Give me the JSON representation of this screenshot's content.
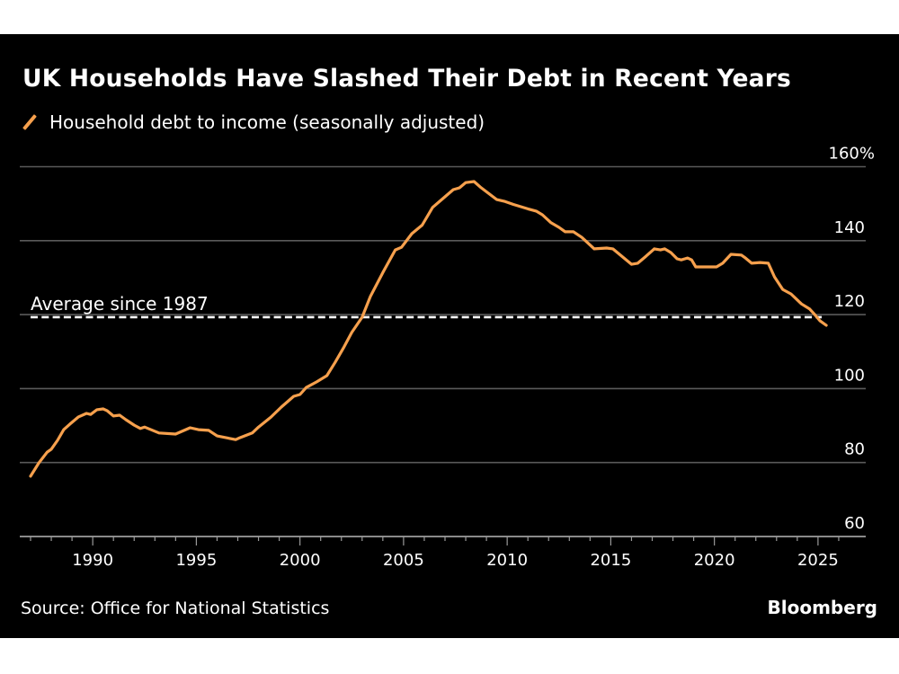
{
  "title": "UK Households Have Slashed Their Debt in Recent Years",
  "legend": {
    "label": "Household debt to income (seasonally adjusted)",
    "icon": "slash-line-icon"
  },
  "source": "Source: Office for National Statistics",
  "brand": "Bloomberg",
  "colors": {
    "background": "#000000",
    "line": "#f6a04d",
    "grid": "#5a5a5a",
    "text": "#ffffff",
    "average": "#ffffff"
  },
  "chart_data": {
    "type": "line",
    "title": "UK Households Have Slashed Their Debt in Recent Years",
    "xlabel": "",
    "ylabel": "",
    "xlim": [
      1986.5,
      2027.2
    ],
    "ylim": [
      60,
      160
    ],
    "grid": true,
    "legend_position": "top-left",
    "x_ticks": [
      1990,
      1995,
      2000,
      2005,
      2010,
      2015,
      2020,
      2025
    ],
    "x_tick_labels": [
      "1990",
      "1995",
      "2000",
      "2005",
      "2010",
      "2015",
      "2020",
      "2025"
    ],
    "x_minor_ticks_every": 1,
    "y_ticks": [
      60,
      80,
      100,
      120,
      140,
      160
    ],
    "y_tick_labels": [
      "60",
      "80",
      "100",
      "120",
      "140",
      "160%"
    ],
    "annotations": [
      {
        "text": "Average since 1987",
        "type": "hline",
        "y": 119.3,
        "style": "dashed"
      }
    ],
    "series": [
      {
        "name": "Household debt to income (seasonally adjusted)",
        "x": [
          1987.0,
          1987.4,
          1987.8,
          1988.0,
          1988.3,
          1988.6,
          1988.9,
          1989.3,
          1989.7,
          1989.9,
          1990.2,
          1990.5,
          1990.7,
          1991.0,
          1991.3,
          1991.6,
          1992.0,
          1992.3,
          1992.5,
          1993.2,
          1994.0,
          1994.7,
          1995.1,
          1995.6,
          1996.0,
          1996.9,
          1997.1,
          1997.7,
          1998.0,
          1998.6,
          1999.1,
          1999.7,
          2000.0,
          2000.3,
          2000.8,
          2001.3,
          2001.7,
          2002.1,
          2002.5,
          2003.0,
          2003.4,
          2004.0,
          2004.6,
          2004.9,
          2005.4,
          2005.9,
          2006.4,
          2006.8,
          2007.4,
          2007.7,
          2008.0,
          2008.4,
          2008.7,
          2009.5,
          2009.9,
          2010.3,
          2011.0,
          2011.4,
          2011.7,
          2012.1,
          2012.5,
          2012.8,
          2013.2,
          2013.6,
          2014.2,
          2014.8,
          2015.1,
          2016.0,
          2016.3,
          2016.7,
          2017.1,
          2017.4,
          2017.6,
          2017.9,
          2018.2,
          2018.4,
          2018.7,
          2018.9,
          2019.1,
          2020.1,
          2020.4,
          2020.8,
          2021.3,
          2021.5,
          2021.8,
          2022.2,
          2022.6,
          2022.9,
          2023.3,
          2023.7,
          2024.2,
          2024.6,
          2024.8,
          2025.1,
          2025.4
        ],
        "values": [
          76.3,
          79.9,
          82.8,
          83.6,
          86.0,
          88.9,
          90.4,
          92.3,
          93.3,
          93.0,
          94.3,
          94.5,
          94.0,
          92.6,
          92.8,
          91.6,
          90.1,
          89.2,
          89.6,
          88.0,
          87.7,
          89.4,
          88.9,
          88.7,
          87.2,
          86.2,
          86.7,
          88.0,
          89.6,
          92.3,
          95.0,
          97.9,
          98.4,
          100.3,
          101.8,
          103.5,
          107.1,
          111.0,
          115.2,
          119.3,
          124.9,
          131.4,
          137.5,
          138.2,
          141.9,
          144.2,
          149.0,
          150.9,
          153.8,
          154.3,
          155.7,
          156.0,
          154.5,
          151.1,
          150.6,
          149.8,
          148.6,
          148.0,
          147.0,
          144.9,
          143.6,
          142.4,
          142.4,
          140.9,
          137.8,
          138.0,
          137.8,
          133.6,
          133.9,
          135.8,
          137.8,
          137.5,
          137.8,
          136.8,
          135.1,
          134.8,
          135.3,
          134.8,
          132.9,
          132.9,
          133.9,
          136.3,
          136.1,
          135.3,
          133.9,
          134.1,
          133.9,
          130.2,
          126.8,
          125.6,
          122.9,
          121.5,
          120.3,
          118.3,
          117.1
        ]
      }
    ]
  }
}
